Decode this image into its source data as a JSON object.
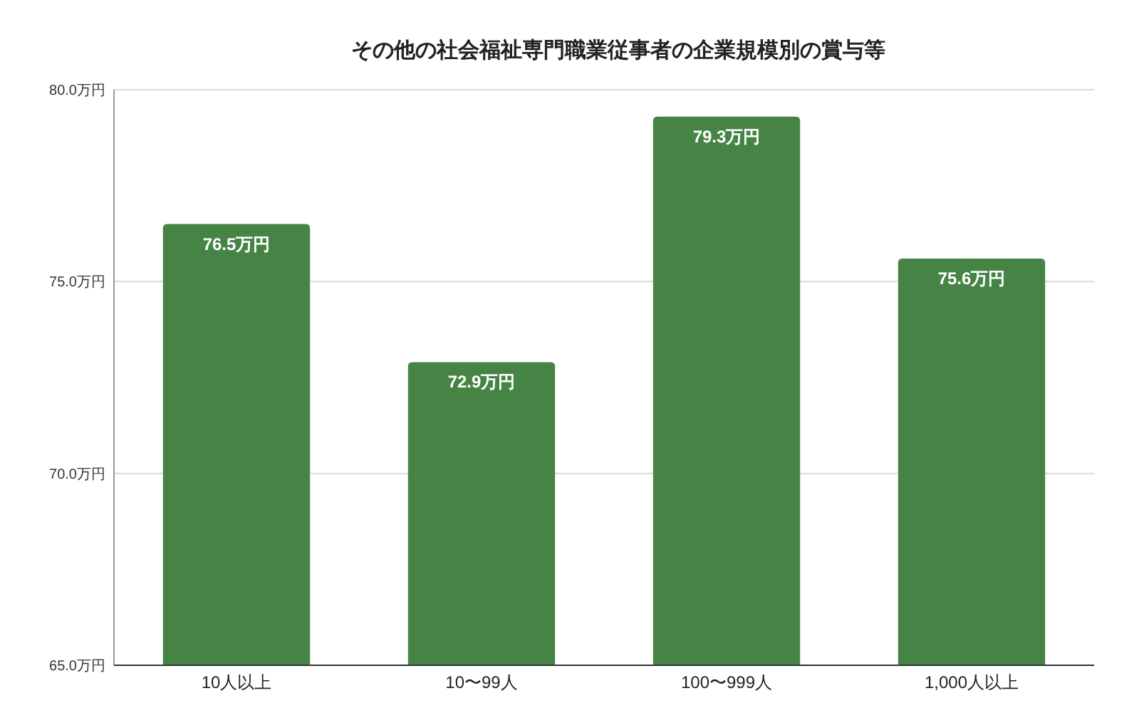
{
  "chart_data": {
    "type": "bar",
    "title": "その他の社会福祉専門職業従事者の企業規模別の賞与等",
    "categories": [
      "10人以上",
      "10〜99人",
      "100〜999人",
      "1,000人以上"
    ],
    "values": [
      76.5,
      72.9,
      79.3,
      75.6
    ],
    "value_labels": [
      "76.5万円",
      "72.9万円",
      "79.3万円",
      "75.6万円"
    ],
    "color": "#468446",
    "ylim": [
      65,
      80
    ],
    "yticks": [
      {
        "value": 65,
        "label": "65.0万円"
      },
      {
        "value": 70,
        "label": "70.0万円"
      },
      {
        "value": 75,
        "label": "75.0万円"
      },
      {
        "value": 80,
        "label": "80.0万円"
      }
    ],
    "grid": "y"
  }
}
